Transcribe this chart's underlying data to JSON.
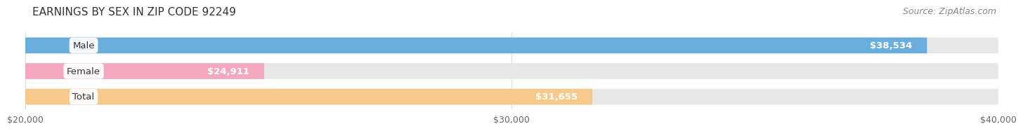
{
  "title": "EARNINGS BY SEX IN ZIP CODE 92249",
  "source": "Source: ZipAtlas.com",
  "categories": [
    "Male",
    "Female",
    "Total"
  ],
  "values": [
    38534,
    24911,
    31655
  ],
  "bar_colors": [
    "#6aaede",
    "#f4a8c0",
    "#f7c98a"
  ],
  "value_labels": [
    "$38,534",
    "$24,911",
    "$31,655"
  ],
  "xmin": 20000,
  "xmax": 40000,
  "xticks": [
    20000,
    30000,
    40000
  ],
  "xtick_labels": [
    "$20,000",
    "$30,000",
    "$40,000"
  ],
  "background_color": "#ffffff",
  "track_color": "#e8e8e8",
  "title_fontsize": 11,
  "source_fontsize": 9,
  "label_fontsize": 9.5,
  "tick_fontsize": 9,
  "cat_fontsize": 9.5
}
